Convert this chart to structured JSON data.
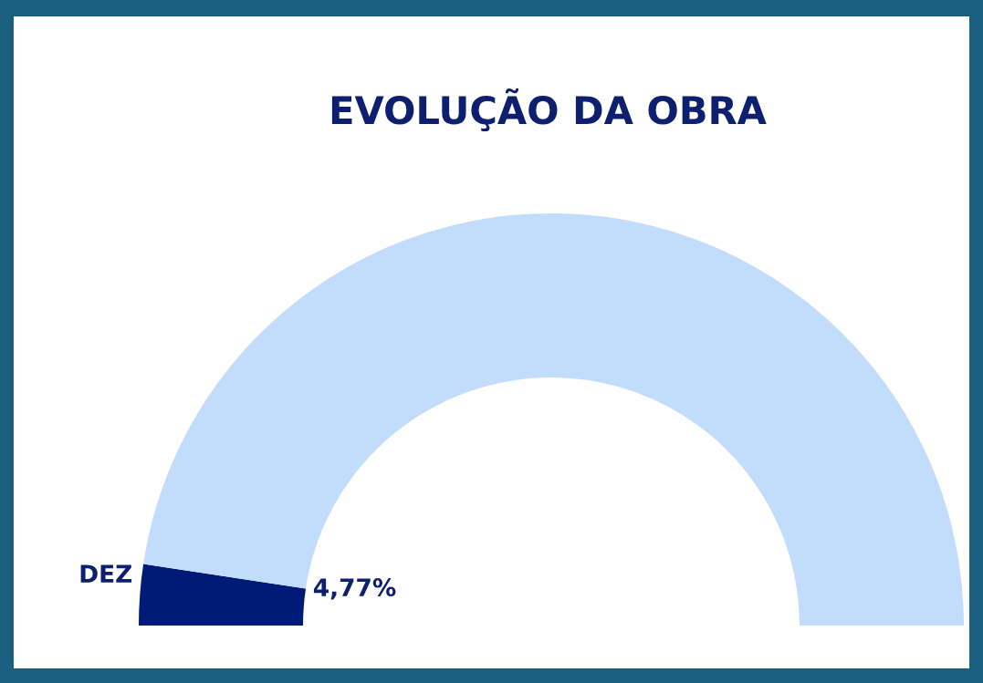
{
  "chart_data": {
    "type": "donut",
    "title": "EVOLUÇÃO DA OBRA",
    "categories": [
      "DEZ",
      null
    ],
    "values": [
      4.77,
      95.23
    ],
    "colors": [
      "#001a78",
      "#c2dcfb"
    ],
    "value_labels": [
      "4,77%",
      null
    ]
  }
}
